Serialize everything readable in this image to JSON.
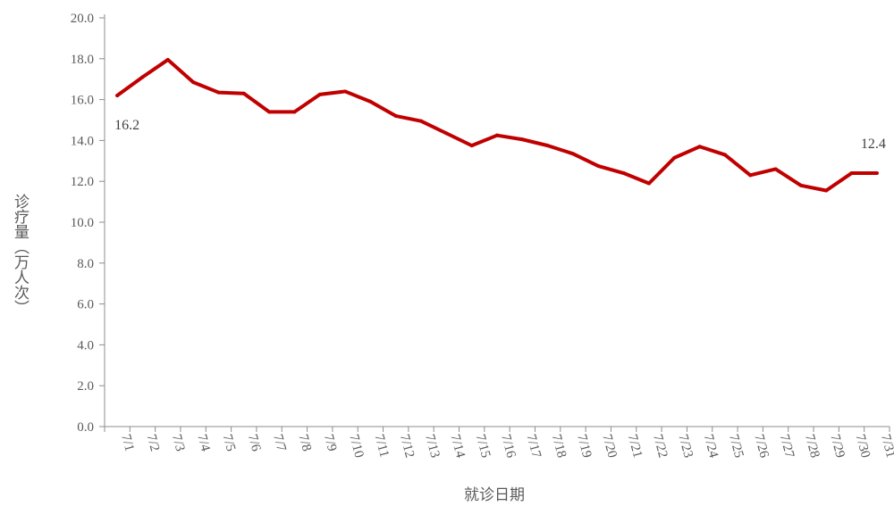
{
  "chart_data": {
    "type": "line",
    "x": [
      "7/1",
      "7/2",
      "7/3",
      "7/4",
      "7/5",
      "7/6",
      "7/7",
      "7/8",
      "7/9",
      "7/10",
      "7/11",
      "7/12",
      "7/13",
      "7/14",
      "7/15",
      "7/16",
      "7/17",
      "7/18",
      "7/19",
      "7/20",
      "7/21",
      "7/22",
      "7/23",
      "7/24",
      "7/25",
      "7/26",
      "7/27",
      "7/28",
      "7/29",
      "7/30",
      "7/31"
    ],
    "series": [
      {
        "values": [
          16.2,
          17.1,
          17.95,
          16.85,
          16.35,
          16.3,
          15.4,
          15.4,
          16.25,
          16.4,
          15.9,
          15.2,
          14.95,
          14.35,
          13.75,
          14.25,
          14.05,
          13.75,
          13.35,
          12.75,
          12.4,
          11.9,
          13.15,
          13.7,
          13.3,
          12.3,
          12.6,
          11.8,
          11.55,
          12.4,
          12.4
        ],
        "color": "#c00000"
      }
    ],
    "ylabel": "诊疗量（万人次）",
    "xlabel": "就诊日期",
    "ylim": [
      0,
      20
    ],
    "yticks": [
      "0.0",
      "2.0",
      "4.0",
      "6.0",
      "8.0",
      "10.0",
      "12.0",
      "14.0",
      "16.0",
      "18.0",
      "20.0"
    ],
    "data_labels": [
      {
        "index": 0,
        "text": "16.2"
      },
      {
        "index": 30,
        "text": "12.4"
      }
    ],
    "grid": false,
    "legend": "none"
  }
}
